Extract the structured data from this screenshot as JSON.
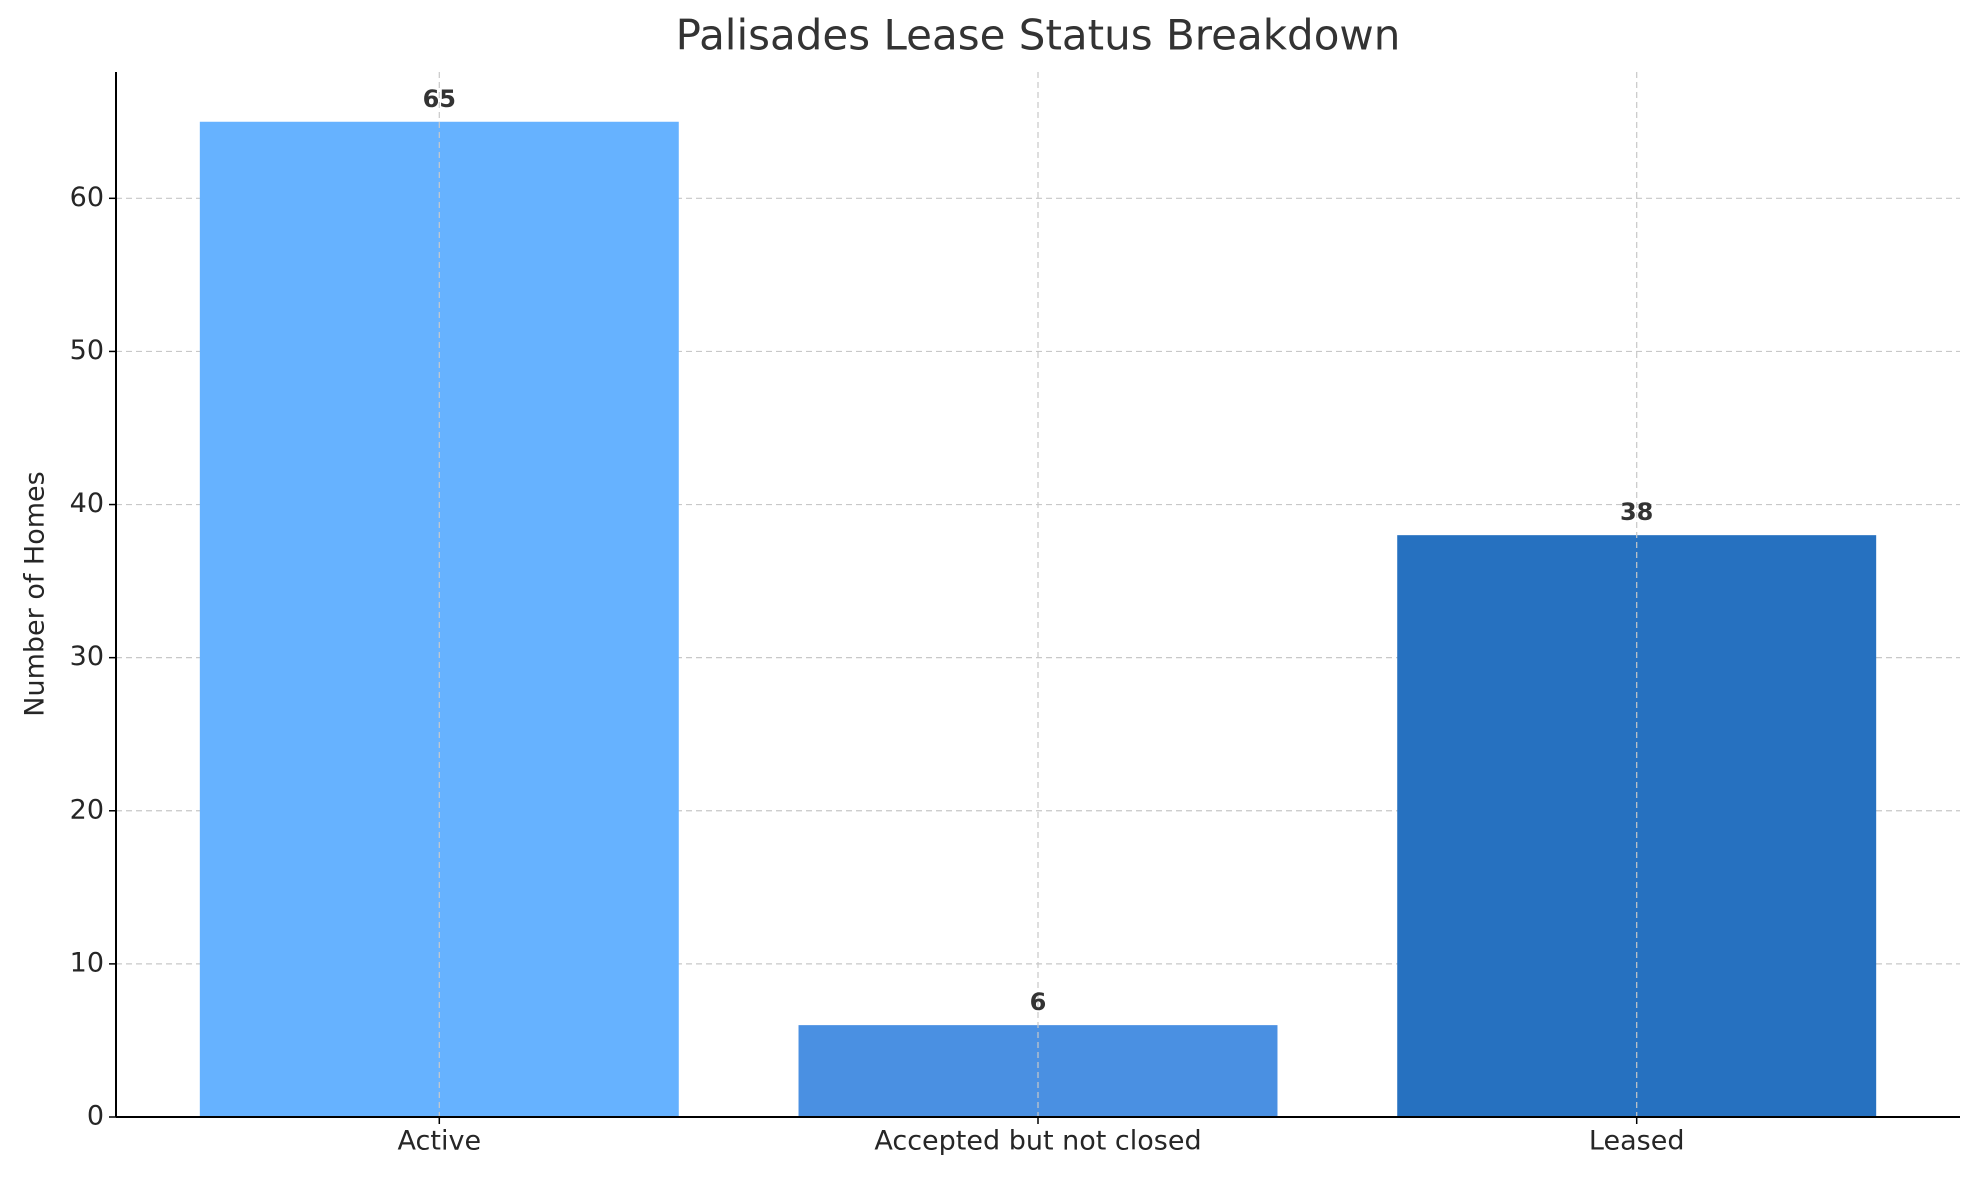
{
  "chart_data": {
    "type": "bar",
    "title": "Palisades Lease Status Breakdown",
    "y_label": "Number of Homes",
    "categories": [
      "Active",
      "Accepted but not closed",
      "Leased"
    ],
    "values": [
      65,
      6,
      38
    ],
    "colors": [
      "#66b2ff",
      "#4a90e2",
      "#2671c0"
    ],
    "ylim": [
      0,
      68.25
    ],
    "yticks": [
      0,
      10,
      20,
      30,
      40,
      50,
      60
    ],
    "grid": true
  }
}
